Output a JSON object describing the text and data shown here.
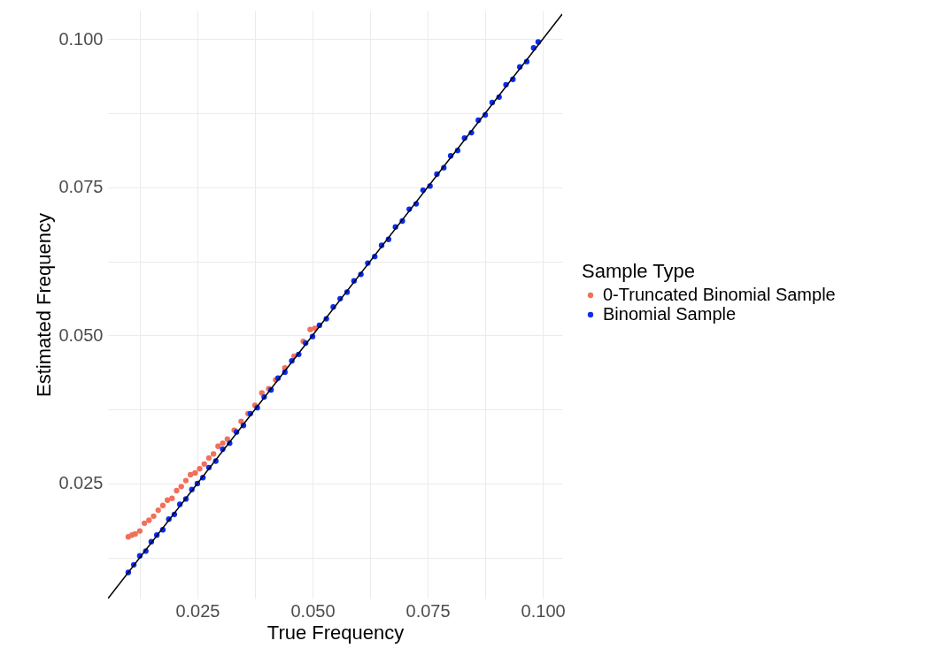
{
  "chart_data": {
    "type": "scatter",
    "xlabel": "True Frequency",
    "ylabel": "Estimated Frequency",
    "legend_title": "Sample Type",
    "legend": "right",
    "grid": true,
    "xlim": [
      0.0056,
      0.1042
    ],
    "ylim": [
      0.0056,
      0.1048
    ],
    "xticks": [
      {
        "value": 0.0125,
        "label": null
      },
      {
        "value": 0.025,
        "label": "0.025"
      },
      {
        "value": 0.0375,
        "label": null
      },
      {
        "value": 0.05,
        "label": "0.050"
      },
      {
        "value": 0.0625,
        "label": null
      },
      {
        "value": 0.075,
        "label": "0.075"
      },
      {
        "value": 0.0875,
        "label": null
      },
      {
        "value": 0.1,
        "label": "0.100"
      }
    ],
    "yticks": [
      {
        "value": 0.0125,
        "label": null
      },
      {
        "value": 0.025,
        "label": "0.025"
      },
      {
        "value": 0.0375,
        "label": null
      },
      {
        "value": 0.05,
        "label": "0.050"
      },
      {
        "value": 0.0625,
        "label": null
      },
      {
        "value": 0.075,
        "label": "0.075"
      },
      {
        "value": 0.0875,
        "label": null
      },
      {
        "value": 0.1,
        "label": "0.100"
      }
    ],
    "series": [
      {
        "name": "0-Truncated Binomial Sample",
        "marker": "circle",
        "color": "#f0705a",
        "x": [
          0.01,
          0.0108,
          0.0115,
          0.0125,
          0.0135,
          0.0145,
          0.0155,
          0.0165,
          0.0175,
          0.0185,
          0.0195,
          0.0205,
          0.0215,
          0.0225,
          0.0235,
          0.0245,
          0.0255,
          0.0265,
          0.0275,
          0.0285,
          0.0295,
          0.0305,
          0.0315,
          0.033,
          0.0345,
          0.036,
          0.0375,
          0.039,
          0.0405,
          0.042,
          0.044,
          0.046,
          0.048,
          0.0495,
          0.0505
        ],
        "values": [
          0.016,
          0.0163,
          0.0165,
          0.017,
          0.0183,
          0.0188,
          0.0195,
          0.0205,
          0.0213,
          0.0222,
          0.0225,
          0.0238,
          0.0245,
          0.0255,
          0.0265,
          0.0268,
          0.0275,
          0.0283,
          0.0293,
          0.03,
          0.0313,
          0.0318,
          0.0325,
          0.034,
          0.0355,
          0.0368,
          0.0382,
          0.0403,
          0.041,
          0.0425,
          0.0445,
          0.0465,
          0.049,
          0.051,
          0.0512
        ]
      },
      {
        "name": "Binomial Sample",
        "marker": "circle",
        "color": "#0a2cf5",
        "x": [
          0.01,
          0.0112,
          0.0125,
          0.0138,
          0.015,
          0.0162,
          0.0175,
          0.0188,
          0.02,
          0.0212,
          0.0225,
          0.0238,
          0.025,
          0.0262,
          0.0275,
          0.029,
          0.0305,
          0.032,
          0.0335,
          0.035,
          0.0365,
          0.038,
          0.0395,
          0.041,
          0.0425,
          0.044,
          0.0455,
          0.047,
          0.0485,
          0.05,
          0.0515,
          0.053,
          0.0545,
          0.056,
          0.0575,
          0.059,
          0.0605,
          0.062,
          0.0635,
          0.065,
          0.0665,
          0.068,
          0.0695,
          0.071,
          0.0725,
          0.074,
          0.0755,
          0.077,
          0.0785,
          0.08,
          0.0815,
          0.083,
          0.0845,
          0.086,
          0.0875,
          0.089,
          0.0905,
          0.092,
          0.0935,
          0.095,
          0.0965,
          0.098,
          0.099
        ],
        "values": [
          0.01,
          0.0113,
          0.0128,
          0.0136,
          0.0152,
          0.0163,
          0.0172,
          0.019,
          0.0198,
          0.0215,
          0.0224,
          0.024,
          0.025,
          0.026,
          0.0277,
          0.0288,
          0.0308,
          0.0318,
          0.0337,
          0.0348,
          0.0368,
          0.0378,
          0.0396,
          0.0408,
          0.0428,
          0.0438,
          0.0457,
          0.0468,
          0.0487,
          0.0498,
          0.0517,
          0.0528,
          0.0548,
          0.0562,
          0.0573,
          0.0592,
          0.0603,
          0.0622,
          0.0633,
          0.0652,
          0.0662,
          0.0683,
          0.0693,
          0.0713,
          0.0722,
          0.0745,
          0.0752,
          0.0772,
          0.0783,
          0.0803,
          0.0812,
          0.0833,
          0.0842,
          0.0863,
          0.0872,
          0.0893,
          0.0902,
          0.0923,
          0.0932,
          0.0953,
          0.0962,
          0.0985,
          0.0995
        ]
      },
      {
        "type": "line",
        "color": "#000000",
        "x": [
          0.0056,
          0.1042
        ],
        "values": [
          0.0056,
          0.1042
        ]
      }
    ]
  }
}
